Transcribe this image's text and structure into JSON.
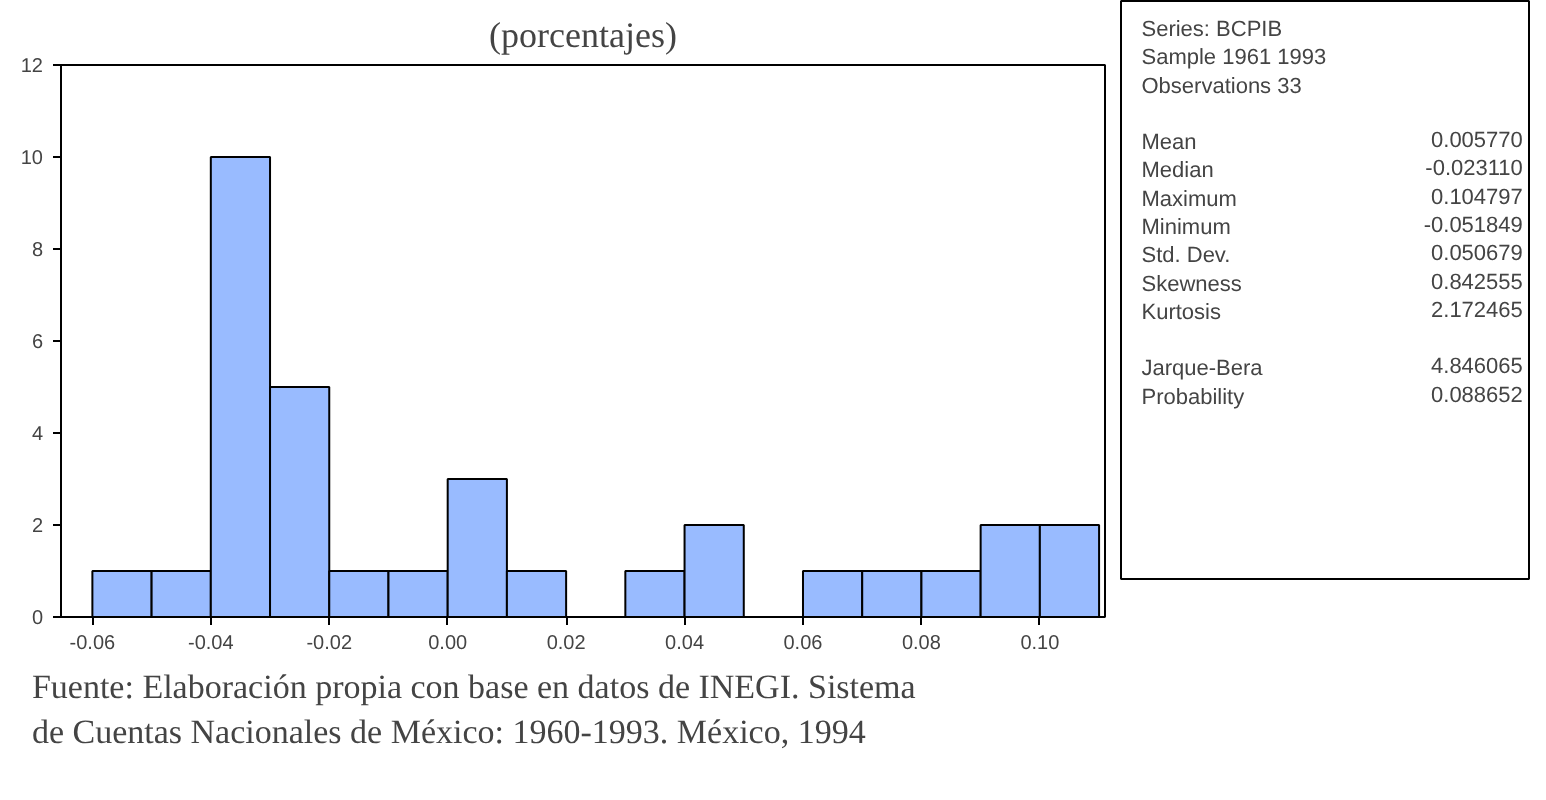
{
  "chart_data": {
    "type": "histogram",
    "title": "(porcentajes)",
    "bins": [
      -0.06,
      -0.05,
      -0.04,
      -0.03,
      -0.02,
      -0.01,
      0.0,
      0.01,
      0.02,
      0.03,
      0.04,
      0.05,
      0.06,
      0.07,
      0.08,
      0.09,
      0.1,
      0.11
    ],
    "values": [
      1,
      1,
      10,
      5,
      1,
      1,
      3,
      1,
      0,
      1,
      2,
      0,
      1,
      1,
      1,
      2,
      2
    ],
    "color": "#99bbff",
    "xlim": [
      -0.0653,
      0.111
    ],
    "ylim": [
      0,
      12
    ],
    "xticks": [
      {
        "value": -0.06,
        "label": "-0.06"
      },
      {
        "value": -0.04,
        "label": "-0.04"
      },
      {
        "value": -0.02,
        "label": "-0.02"
      },
      {
        "value": 0.0,
        "label": "0.00"
      },
      {
        "value": 0.02,
        "label": "0.02"
      },
      {
        "value": 0.04,
        "label": "0.04"
      },
      {
        "value": 0.06,
        "label": "0.06"
      },
      {
        "value": 0.08,
        "label": "0.08"
      },
      {
        "value": 0.1,
        "label": "0.10"
      }
    ],
    "yticks": [
      0,
      2,
      4,
      6,
      8,
      10,
      12
    ],
    "grid": false,
    "annotations": [
      "Series: BCPIB",
      "Sample 1961 1993",
      "Observations 33",
      "Mean\t0.005770",
      "Median\t-0.023110",
      "Maximum\t0.104797",
      "Minimum\t-0.051849",
      "Std. Dev.\t0.050679",
      "Skewness\t0.842555",
      "Kurtosis\t2.172465",
      "Jarque-Bera\t4.846065",
      "Probability\t0.088652",
      "Fuente: Elaboración propia con base en datos de INEGI. Sistema\n          de Cuentas Nacionales de México: 1960-1993. México, 1994"
    ]
  }
}
